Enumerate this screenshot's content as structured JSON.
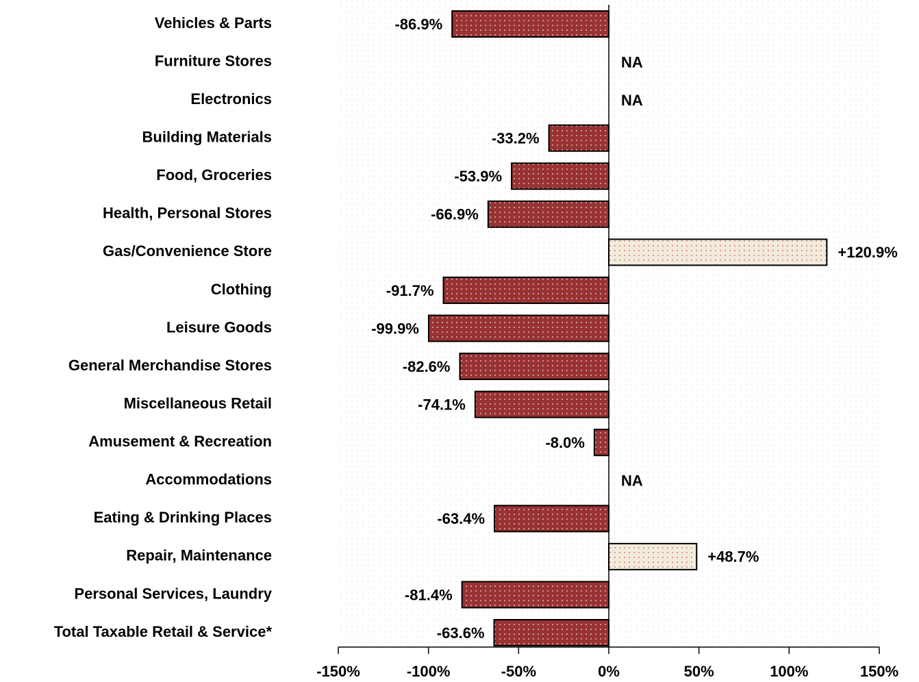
{
  "chart_data": {
    "type": "hbar",
    "categories": [
      "Vehicles & Parts",
      "Furniture Stores",
      "Electronics",
      "Building Materials",
      "Food, Groceries",
      "Health, Personal Stores",
      "Gas/Convenience Store",
      "Clothing",
      "Leisure Goods",
      "General Merchandise Stores",
      "Miscellaneous Retail",
      "Amusement & Recreation",
      "Accommodations",
      "Eating & Drinking Places",
      "Repair, Maintenance",
      "Personal Services, Laundry",
      "Total Taxable Retail & Service*"
    ],
    "values": [
      -86.9,
      null,
      null,
      -33.2,
      -53.9,
      -66.9,
      120.9,
      -91.7,
      -99.9,
      -82.6,
      -74.1,
      -8.0,
      null,
      -63.4,
      48.7,
      -81.4,
      -63.6
    ],
    "value_labels": [
      "-86.9%",
      "NA",
      "NA",
      "-33.2%",
      "-53.9%",
      "-66.9%",
      "+120.9%",
      "-91.7%",
      "-99.9%",
      "-82.6%",
      "-74.1%",
      "-8.0%",
      "NA",
      "-63.4%",
      "+48.7%",
      "-81.4%",
      "-63.6%"
    ],
    "xlim": [
      -150,
      150
    ],
    "xticks": [
      {
        "value": -150,
        "label": "-150%"
      },
      {
        "value": -100,
        "label": "-100%"
      },
      {
        "value": -50,
        "label": "-50%"
      },
      {
        "value": 0,
        "label": "0%"
      },
      {
        "value": 50,
        "label": "50%"
      },
      {
        "value": 100,
        "label": "100%"
      },
      {
        "value": 150,
        "label": "150%"
      }
    ],
    "negative_color": "#993333",
    "positive_color": "#f2ebdc",
    "negative_label_color": "#ff0000",
    "positive_label_color": "#000000"
  }
}
